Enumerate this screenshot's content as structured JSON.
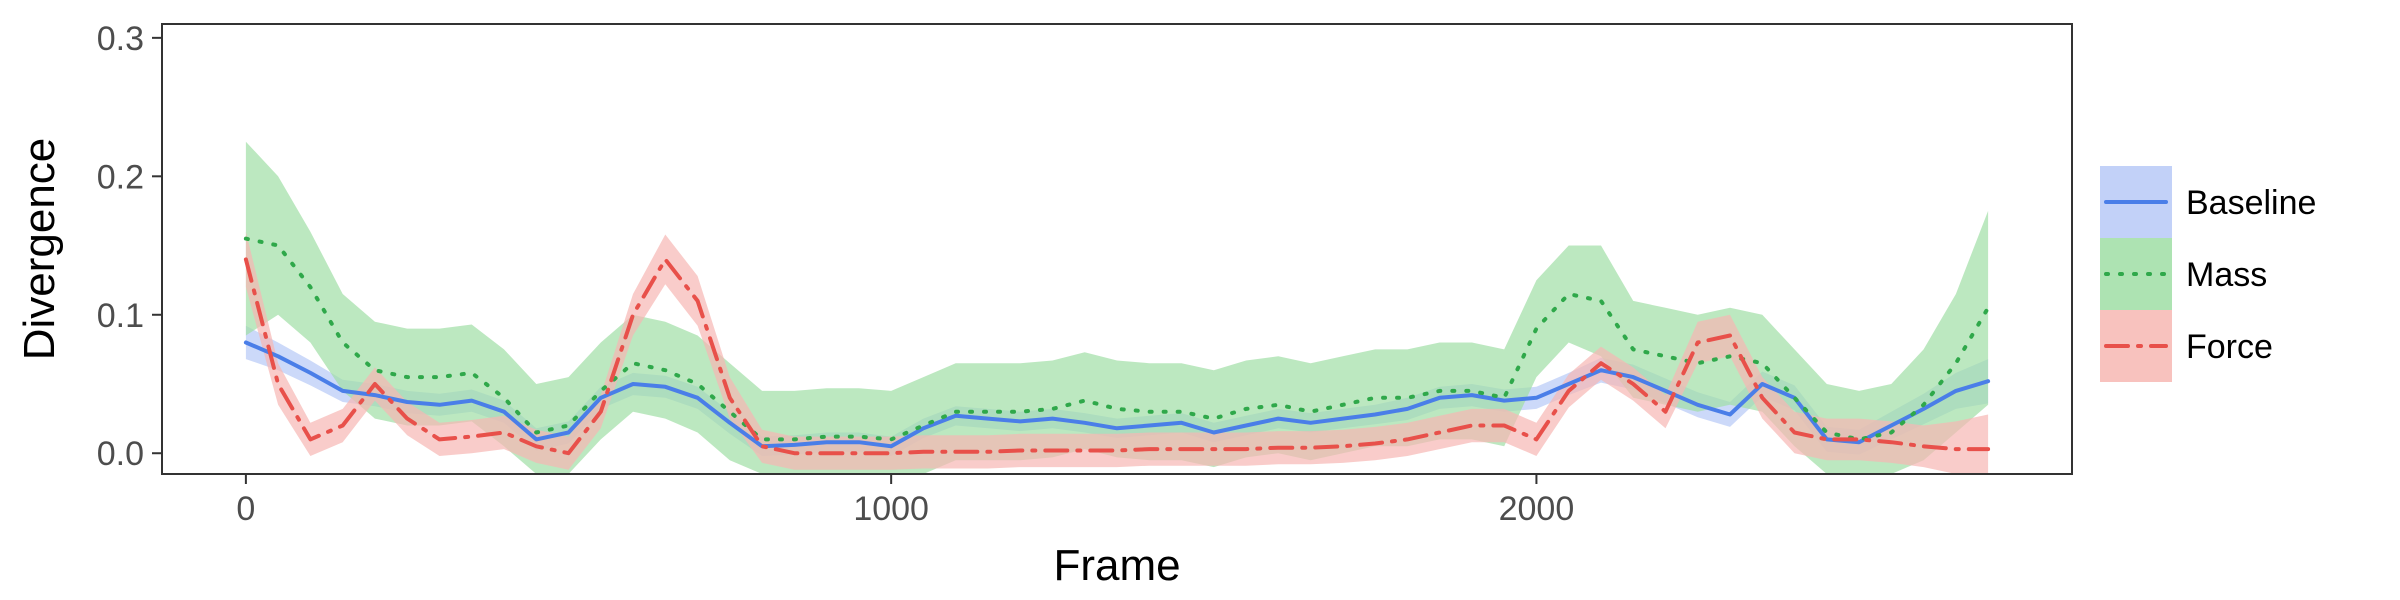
{
  "chart_data": {
    "type": "line",
    "title": "",
    "xlabel": "Frame",
    "ylabel": "Divergence",
    "xlim": [
      -130,
      2830
    ],
    "ylim": [
      -0.015,
      0.31
    ],
    "x_ticks": [
      0,
      1000,
      2000
    ],
    "x_tick_labels": [
      "0",
      "1000",
      "2000"
    ],
    "y_ticks": [
      0.0,
      0.1,
      0.2,
      0.3
    ],
    "y_tick_labels": [
      "0.0",
      "0.1",
      "0.2",
      "0.3"
    ],
    "grid": false,
    "legend_position": "right",
    "series": [
      {
        "name": "Baseline",
        "color": "#4a7ee8",
        "band_color": "#b7c9f7",
        "line_style": "solid",
        "x": [
          0,
          50,
          100,
          150,
          200,
          250,
          300,
          350,
          400,
          450,
          500,
          550,
          600,
          650,
          700,
          750,
          800,
          850,
          900,
          950,
          1000,
          1050,
          1100,
          1150,
          1200,
          1250,
          1300,
          1350,
          1400,
          1450,
          1500,
          1550,
          1600,
          1650,
          1700,
          1750,
          1800,
          1850,
          1900,
          1950,
          2000,
          2050,
          2100,
          2150,
          2200,
          2250,
          2300,
          2350,
          2400,
          2450,
          2500,
          2550,
          2600,
          2650,
          2700
        ],
        "y": [
          0.08,
          0.07,
          0.058,
          0.045,
          0.042,
          0.037,
          0.035,
          0.038,
          0.03,
          0.01,
          0.015,
          0.04,
          0.05,
          0.048,
          0.04,
          0.022,
          0.005,
          0.006,
          0.008,
          0.008,
          0.005,
          0.018,
          0.027,
          0.025,
          0.023,
          0.025,
          0.022,
          0.018,
          0.02,
          0.022,
          0.015,
          0.02,
          0.025,
          0.022,
          0.025,
          0.028,
          0.032,
          0.04,
          0.042,
          0.038,
          0.04,
          0.05,
          0.06,
          0.055,
          0.045,
          0.035,
          0.028,
          0.05,
          0.04,
          0.01,
          0.008,
          0.02,
          0.032,
          0.045,
          0.052
        ],
        "band": [
          0.012,
          0.01,
          0.009,
          0.008,
          0.008,
          0.008,
          0.008,
          0.008,
          0.008,
          0.008,
          0.008,
          0.008,
          0.008,
          0.008,
          0.008,
          0.008,
          0.007,
          0.007,
          0.007,
          0.007,
          0.007,
          0.007,
          0.007,
          0.007,
          0.007,
          0.007,
          0.007,
          0.007,
          0.007,
          0.007,
          0.007,
          0.007,
          0.007,
          0.007,
          0.007,
          0.007,
          0.008,
          0.008,
          0.008,
          0.008,
          0.008,
          0.008,
          0.009,
          0.009,
          0.009,
          0.009,
          0.009,
          0.009,
          0.009,
          0.009,
          0.009,
          0.01,
          0.011,
          0.013,
          0.016
        ]
      },
      {
        "name": "Mass",
        "color": "#2fa84a",
        "band_color": "#9fdea5",
        "line_style": "dotted",
        "x": [
          0,
          50,
          100,
          150,
          200,
          250,
          300,
          350,
          400,
          450,
          500,
          550,
          600,
          650,
          700,
          750,
          800,
          850,
          900,
          950,
          1000,
          1050,
          1100,
          1150,
          1200,
          1250,
          1300,
          1350,
          1400,
          1450,
          1500,
          1550,
          1600,
          1650,
          1700,
          1750,
          1800,
          1850,
          1900,
          1950,
          2000,
          2050,
          2100,
          2150,
          2200,
          2250,
          2300,
          2350,
          2400,
          2450,
          2500,
          2550,
          2600,
          2650,
          2700
        ],
        "y": [
          0.155,
          0.15,
          0.12,
          0.08,
          0.06,
          0.055,
          0.055,
          0.058,
          0.04,
          0.015,
          0.02,
          0.045,
          0.065,
          0.06,
          0.05,
          0.03,
          0.01,
          0.01,
          0.012,
          0.012,
          0.01,
          0.02,
          0.03,
          0.03,
          0.03,
          0.032,
          0.038,
          0.032,
          0.03,
          0.03,
          0.025,
          0.032,
          0.035,
          0.03,
          0.035,
          0.04,
          0.04,
          0.045,
          0.045,
          0.04,
          0.09,
          0.115,
          0.11,
          0.075,
          0.07,
          0.065,
          0.07,
          0.065,
          0.04,
          0.015,
          0.01,
          0.015,
          0.035,
          0.065,
          0.105
        ],
        "band": [
          0.07,
          0.05,
          0.04,
          0.035,
          0.035,
          0.035,
          0.035,
          0.035,
          0.035,
          0.035,
          0.035,
          0.035,
          0.035,
          0.035,
          0.035,
          0.035,
          0.035,
          0.035,
          0.035,
          0.035,
          0.035,
          0.035,
          0.035,
          0.035,
          0.035,
          0.035,
          0.035,
          0.035,
          0.035,
          0.035,
          0.035,
          0.035,
          0.035,
          0.035,
          0.035,
          0.035,
          0.035,
          0.035,
          0.035,
          0.035,
          0.035,
          0.035,
          0.04,
          0.035,
          0.035,
          0.035,
          0.035,
          0.035,
          0.035,
          0.035,
          0.035,
          0.035,
          0.04,
          0.05,
          0.07
        ]
      },
      {
        "name": "Force",
        "color": "#e8504a",
        "band_color": "#f7b7b3",
        "line_style": "dashdot",
        "x": [
          0,
          50,
          100,
          150,
          200,
          250,
          300,
          350,
          400,
          450,
          500,
          550,
          600,
          650,
          700,
          750,
          800,
          850,
          900,
          950,
          1000,
          1050,
          1100,
          1150,
          1200,
          1250,
          1300,
          1350,
          1400,
          1450,
          1500,
          1550,
          1600,
          1650,
          1700,
          1750,
          1800,
          1850,
          1900,
          1950,
          2000,
          2050,
          2100,
          2150,
          2200,
          2250,
          2300,
          2350,
          2400,
          2450,
          2500,
          2550,
          2600,
          2650,
          2700
        ],
        "y": [
          0.14,
          0.05,
          0.01,
          0.02,
          0.05,
          0.025,
          0.01,
          0.012,
          0.015,
          0.005,
          0.0,
          0.03,
          0.1,
          0.14,
          0.11,
          0.04,
          0.005,
          0.0,
          0.0,
          0.0,
          0.0,
          0.001,
          0.001,
          0.001,
          0.002,
          0.002,
          0.002,
          0.002,
          0.003,
          0.003,
          0.003,
          0.003,
          0.004,
          0.004,
          0.005,
          0.007,
          0.01,
          0.015,
          0.02,
          0.02,
          0.01,
          0.045,
          0.065,
          0.05,
          0.03,
          0.08,
          0.085,
          0.04,
          0.015,
          0.01,
          0.01,
          0.008,
          0.005,
          0.003,
          0.003
        ],
        "band": [
          0.02,
          0.015,
          0.012,
          0.012,
          0.012,
          0.012,
          0.012,
          0.012,
          0.012,
          0.012,
          0.012,
          0.012,
          0.015,
          0.018,
          0.018,
          0.015,
          0.012,
          0.012,
          0.012,
          0.012,
          0.012,
          0.012,
          0.012,
          0.012,
          0.012,
          0.012,
          0.012,
          0.012,
          0.012,
          0.012,
          0.012,
          0.012,
          0.012,
          0.012,
          0.012,
          0.012,
          0.012,
          0.012,
          0.012,
          0.012,
          0.012,
          0.012,
          0.012,
          0.012,
          0.012,
          0.015,
          0.015,
          0.015,
          0.015,
          0.015,
          0.015,
          0.015,
          0.015,
          0.02,
          0.025
        ]
      }
    ]
  }
}
